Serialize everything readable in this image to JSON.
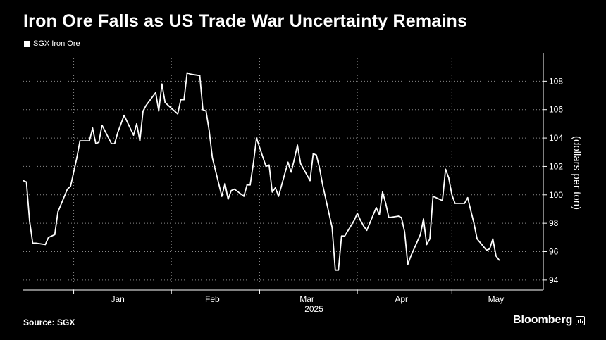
{
  "title": "Iron Ore Falls as US Trade War Uncertainty Remains",
  "legend": {
    "label": "SGX Iron Ore"
  },
  "source": "Source: SGX",
  "brand": "Bloomberg",
  "colors": {
    "background": "#000000",
    "line": "#ffffff",
    "grid": "#8a8a8a"
  },
  "chart_data": {
    "type": "line",
    "title": "Iron Ore Falls as US Trade War Uncertainty Remains",
    "ylabel": "(dollars per ton)",
    "xlabel": "",
    "year_label": "2025",
    "ylim": [
      93.3,
      110
    ],
    "yticks": [
      94,
      96,
      98,
      100,
      102,
      104,
      106,
      108
    ],
    "x_range": [
      "2024-12-16",
      "2025-05-30"
    ],
    "x_ticks": [
      {
        "label": "Jan",
        "date": "2025-01-15"
      },
      {
        "label": "Feb",
        "date": "2025-02-14"
      },
      {
        "label": "Mar",
        "date": "2025-03-16"
      },
      {
        "label": "Apr",
        "date": "2025-04-15"
      },
      {
        "label": "May",
        "date": "2025-05-15"
      }
    ],
    "x_gridlines": [
      "2025-01-01",
      "2025-02-01",
      "2025-03-01",
      "2025-04-01",
      "2025-05-01"
    ],
    "grid": true,
    "legend_position": "top-left",
    "series": [
      {
        "name": "SGX Iron Ore",
        "points": [
          [
            "2024-12-16",
            101.0
          ],
          [
            "2024-12-17",
            100.9
          ],
          [
            "2024-12-18",
            98.2
          ],
          [
            "2024-12-19",
            96.6
          ],
          [
            "2024-12-20",
            96.6
          ],
          [
            "2024-12-23",
            96.5
          ],
          [
            "2024-12-24",
            97.0
          ],
          [
            "2024-12-26",
            97.2
          ],
          [
            "2024-12-27",
            98.8
          ],
          [
            "2024-12-30",
            100.4
          ],
          [
            "2024-12-31",
            100.6
          ],
          [
            "2025-01-02",
            102.6
          ],
          [
            "2025-01-03",
            103.8
          ],
          [
            "2025-01-06",
            103.8
          ],
          [
            "2025-01-07",
            104.7
          ],
          [
            "2025-01-08",
            103.6
          ],
          [
            "2025-01-09",
            103.7
          ],
          [
            "2025-01-10",
            104.9
          ],
          [
            "2025-01-13",
            103.6
          ],
          [
            "2025-01-14",
            103.6
          ],
          [
            "2025-01-15",
            104.4
          ],
          [
            "2025-01-16",
            105.0
          ],
          [
            "2025-01-17",
            105.6
          ],
          [
            "2025-01-20",
            104.2
          ],
          [
            "2025-01-21",
            105.0
          ],
          [
            "2025-01-22",
            103.8
          ],
          [
            "2025-01-23",
            105.9
          ],
          [
            "2025-01-24",
            106.3
          ],
          [
            "2025-01-27",
            107.2
          ],
          [
            "2025-01-28",
            105.9
          ],
          [
            "2025-01-29",
            107.8
          ],
          [
            "2025-01-30",
            106.5
          ],
          [
            "2025-01-31",
            106.3
          ],
          [
            "2025-02-03",
            105.7
          ],
          [
            "2025-02-04",
            106.7
          ],
          [
            "2025-02-05",
            106.7
          ],
          [
            "2025-02-06",
            108.6
          ],
          [
            "2025-02-07",
            108.5
          ],
          [
            "2025-02-10",
            108.4
          ],
          [
            "2025-02-11",
            106.0
          ],
          [
            "2025-02-12",
            105.9
          ],
          [
            "2025-02-13",
            104.5
          ],
          [
            "2025-02-14",
            102.6
          ],
          [
            "2025-02-17",
            99.9
          ],
          [
            "2025-02-18",
            100.8
          ],
          [
            "2025-02-19",
            99.7
          ],
          [
            "2025-02-20",
            100.3
          ],
          [
            "2025-02-21",
            100.4
          ],
          [
            "2025-02-24",
            99.9
          ],
          [
            "2025-02-25",
            100.7
          ],
          [
            "2025-02-26",
            100.7
          ],
          [
            "2025-02-27",
            102.2
          ],
          [
            "2025-02-28",
            104.0
          ],
          [
            "2025-03-03",
            102.0
          ],
          [
            "2025-03-04",
            102.1
          ],
          [
            "2025-03-05",
            100.2
          ],
          [
            "2025-03-06",
            100.5
          ],
          [
            "2025-03-07",
            99.9
          ],
          [
            "2025-03-10",
            102.3
          ],
          [
            "2025-03-11",
            101.6
          ],
          [
            "2025-03-12",
            102.5
          ],
          [
            "2025-03-13",
            103.5
          ],
          [
            "2025-03-14",
            102.2
          ],
          [
            "2025-03-17",
            101.0
          ],
          [
            "2025-03-18",
            102.9
          ],
          [
            "2025-03-19",
            102.8
          ],
          [
            "2025-03-20",
            101.9
          ],
          [
            "2025-03-21",
            100.7
          ],
          [
            "2025-03-24",
            97.7
          ],
          [
            "2025-03-25",
            94.7
          ],
          [
            "2025-03-26",
            94.7
          ],
          [
            "2025-03-27",
            97.1
          ],
          [
            "2025-03-28",
            97.1
          ],
          [
            "2025-03-31",
            98.2
          ],
          [
            "2025-04-01",
            98.7
          ],
          [
            "2025-04-02",
            98.2
          ],
          [
            "2025-04-03",
            97.8
          ],
          [
            "2025-04-04",
            97.5
          ],
          [
            "2025-04-07",
            99.1
          ],
          [
            "2025-04-08",
            98.6
          ],
          [
            "2025-04-09",
            100.2
          ],
          [
            "2025-04-10",
            99.4
          ],
          [
            "2025-04-11",
            98.4
          ],
          [
            "2025-04-14",
            98.5
          ],
          [
            "2025-04-15",
            98.4
          ],
          [
            "2025-04-16",
            97.4
          ],
          [
            "2025-04-17",
            95.1
          ],
          [
            "2025-04-18",
            95.7
          ],
          [
            "2025-04-21",
            97.2
          ],
          [
            "2025-04-22",
            98.3
          ],
          [
            "2025-04-23",
            96.5
          ],
          [
            "2025-04-24",
            96.9
          ],
          [
            "2025-04-25",
            99.9
          ],
          [
            "2025-04-28",
            99.6
          ],
          [
            "2025-04-29",
            101.8
          ],
          [
            "2025-04-30",
            101.2
          ],
          [
            "2025-05-01",
            100.0
          ],
          [
            "2025-05-02",
            99.4
          ],
          [
            "2025-05-05",
            99.4
          ],
          [
            "2025-05-06",
            99.8
          ],
          [
            "2025-05-07",
            98.9
          ],
          [
            "2025-05-08",
            98.0
          ],
          [
            "2025-05-09",
            96.9
          ],
          [
            "2025-05-12",
            96.1
          ],
          [
            "2025-05-13",
            96.2
          ],
          [
            "2025-05-14",
            96.9
          ],
          [
            "2025-05-15",
            95.7
          ],
          [
            "2025-05-16",
            95.4
          ]
        ]
      }
    ]
  }
}
